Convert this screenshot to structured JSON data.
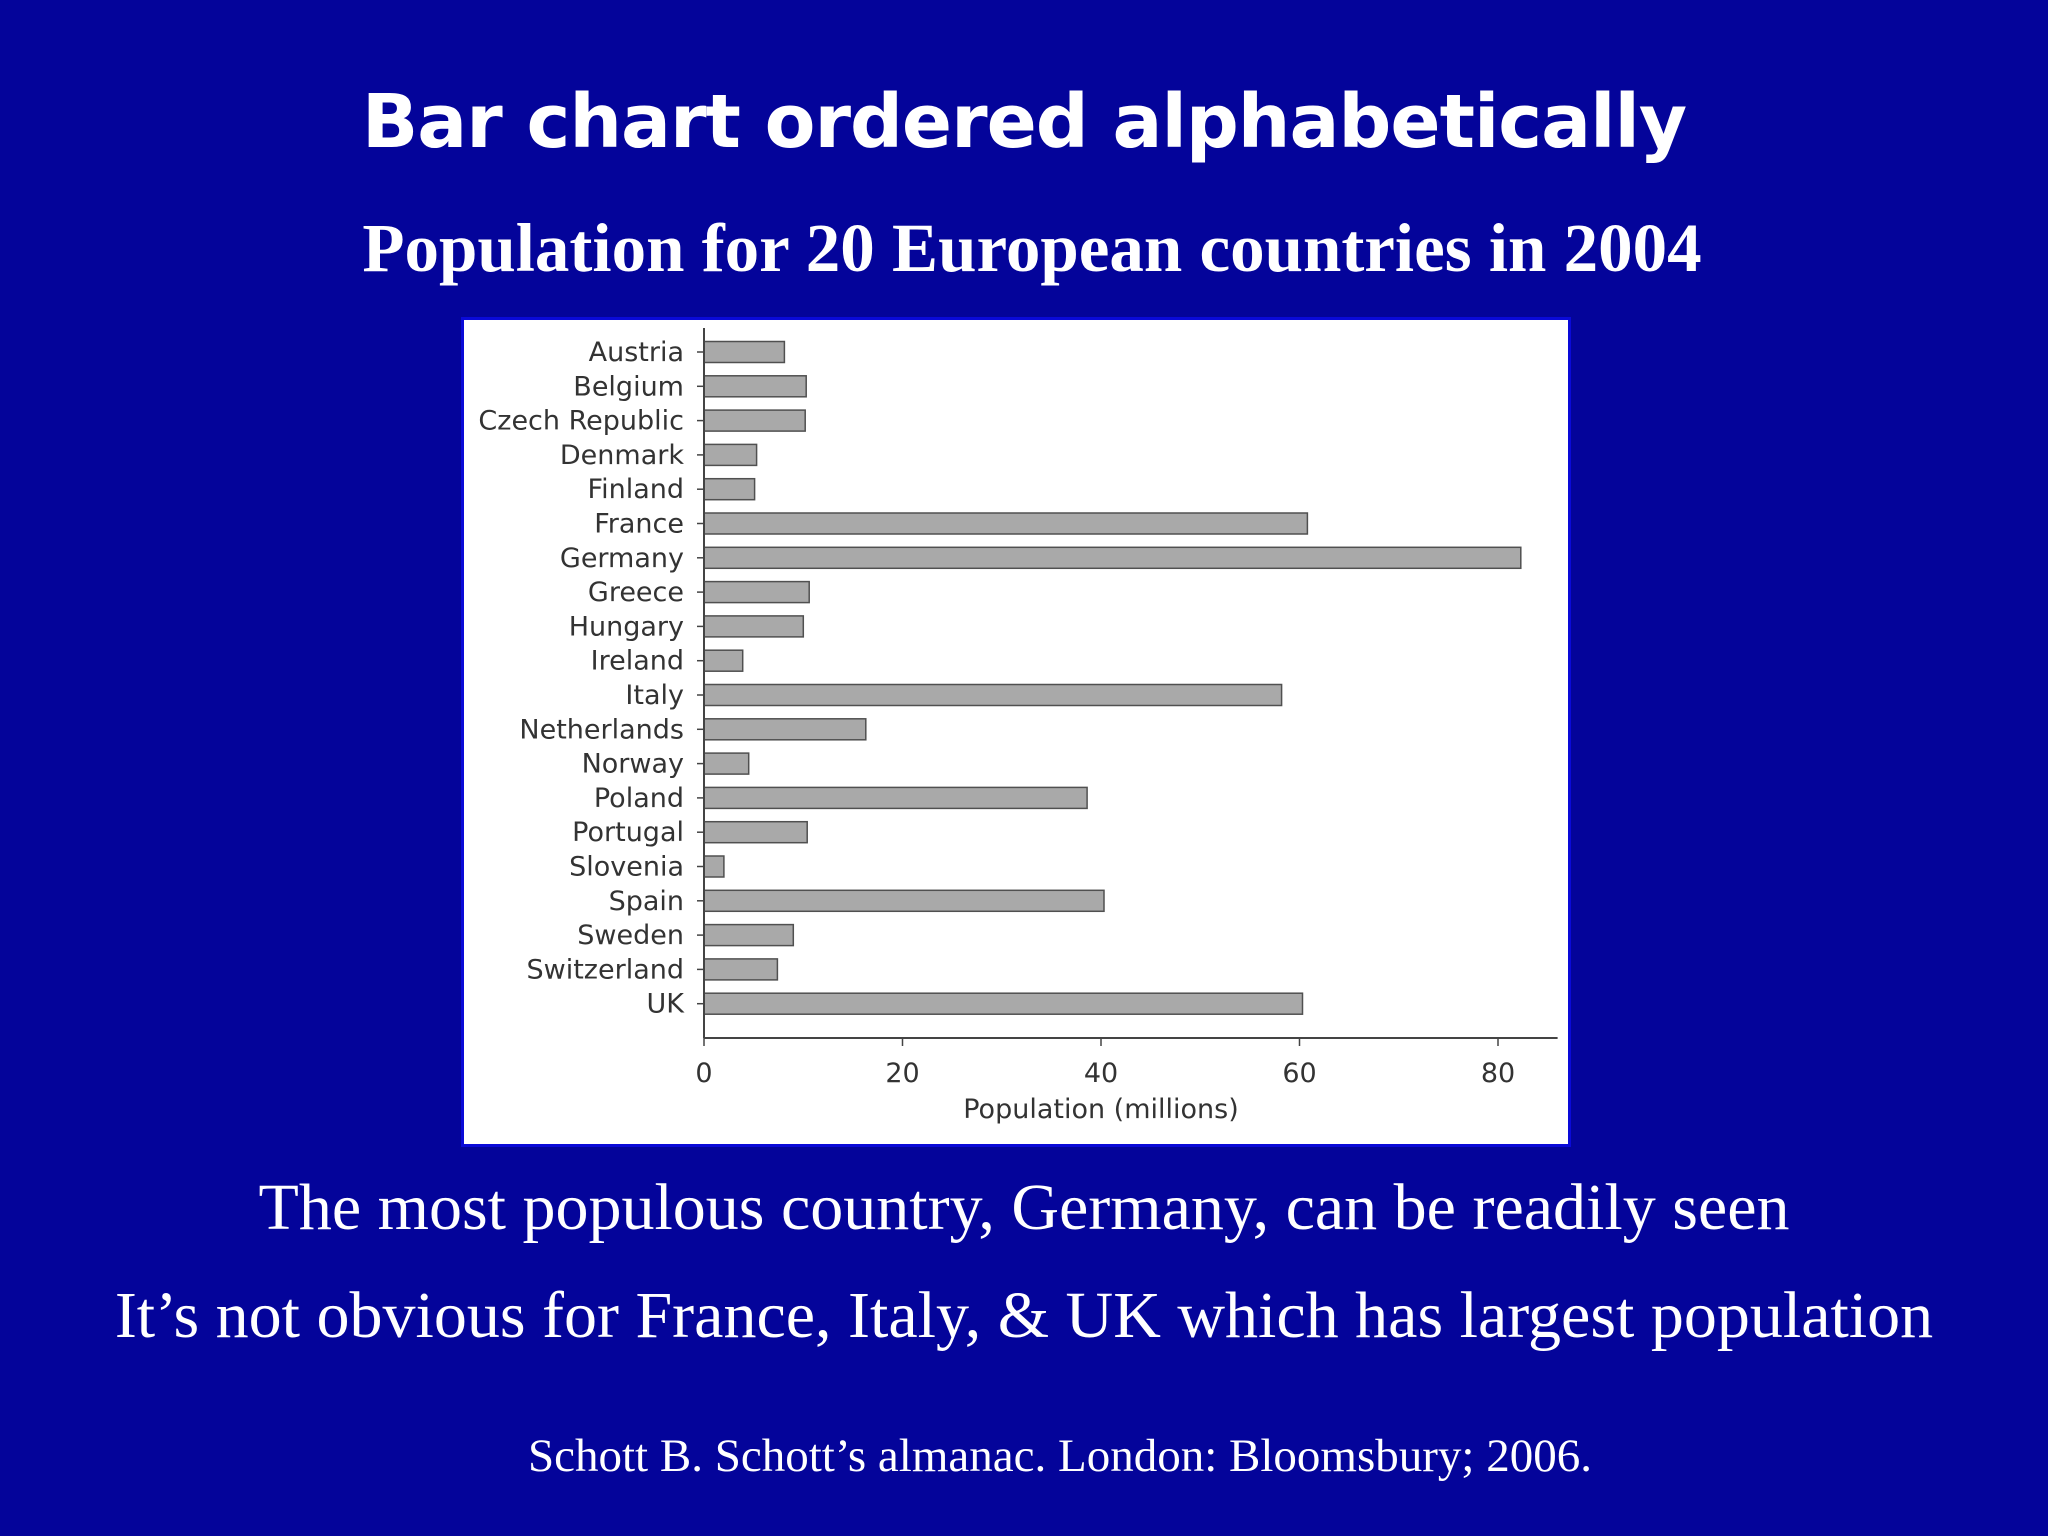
{
  "slide": {
    "title": "Bar chart ordered alphabetically",
    "subtitle": "Population for 20 European countries in 2004",
    "note_1": "The most populous country, Germany, can be readily seen",
    "note_2": "It’s not obvious for France, Italy, & UK which has largest population",
    "citation": "Schott B. Schott’s almanac. London: Bloomsbury; 2006."
  },
  "colors": {
    "background": "#04049a",
    "bar_fill": "#a9a9a9",
    "bar_stroke": "#505050",
    "axis": "#444444",
    "label": "#333333"
  },
  "chart_data": {
    "type": "bar",
    "orientation": "horizontal",
    "title": "",
    "xlabel": "Population (millions)",
    "ylabel": "",
    "xlim": [
      0,
      86
    ],
    "xticks": [
      0,
      20,
      40,
      60,
      80
    ],
    "grid": false,
    "legend": false,
    "categories": [
      "Austria",
      "Belgium",
      "Czech Republic",
      "Denmark",
      "Finland",
      "France",
      "Germany",
      "Greece",
      "Hungary",
      "Ireland",
      "Italy",
      "Netherlands",
      "Norway",
      "Poland",
      "Portugal",
      "Slovenia",
      "Spain",
      "Sweden",
      "Switzerland",
      "UK"
    ],
    "values": [
      8.1,
      10.3,
      10.2,
      5.3,
      5.1,
      60.8,
      82.3,
      10.6,
      10.0,
      3.9,
      58.2,
      16.3,
      4.5,
      38.6,
      10.4,
      2.0,
      40.3,
      9.0,
      7.4,
      60.3
    ]
  }
}
